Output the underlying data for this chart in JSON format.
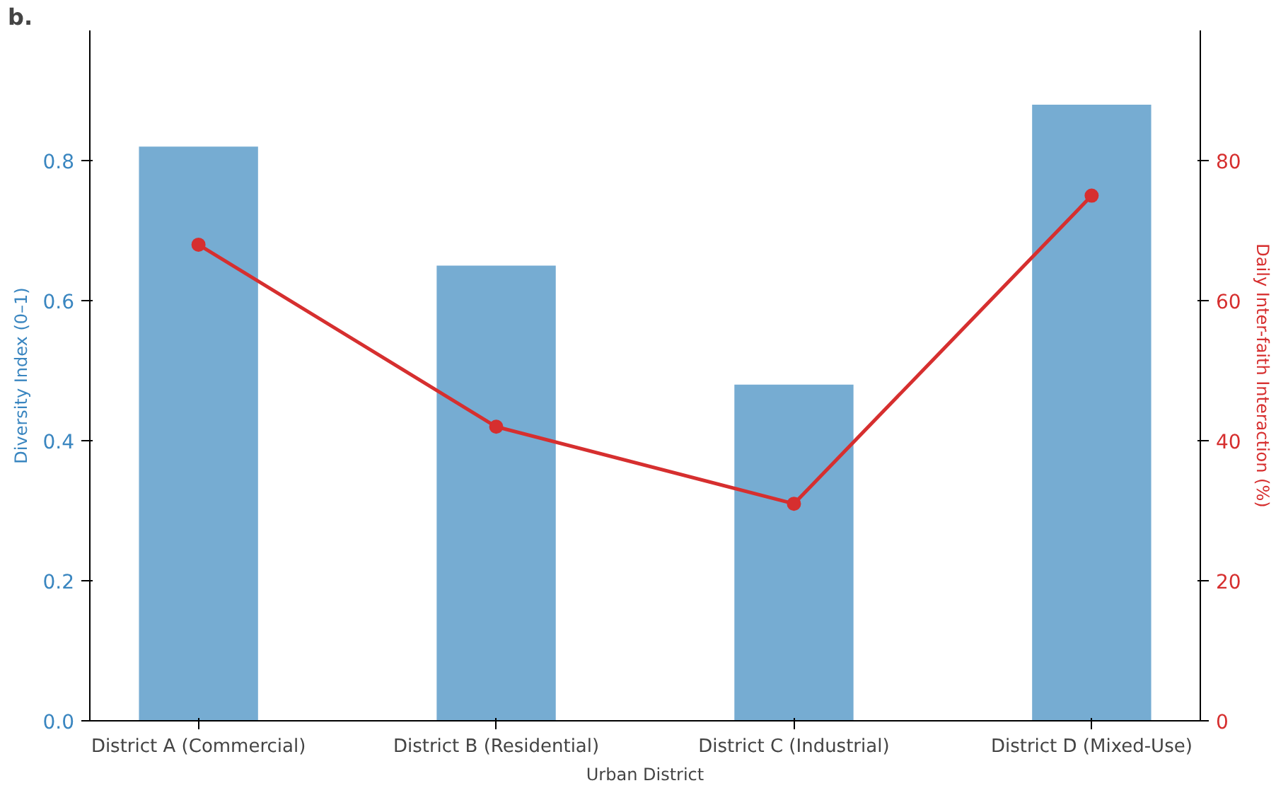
{
  "chart_data": {
    "type": "bar",
    "categories": [
      "District A (Commercial)",
      "District B (Residential)",
      "District C (Industrial)",
      "District D (Mixed-Use)"
    ],
    "xlabel": "Urban District",
    "ylabel": "Diversity Index (0–1)",
    "y2label": "Daily Inter-faith Interaction (%)",
    "ylim": [
      0,
      0.986
    ],
    "yticks": [
      {
        "value": 0,
        "label": "0.0"
      },
      0.2,
      0.4,
      0.6,
      0.8
    ],
    "y2lim": [
      0,
      98.6
    ],
    "y2ticks": [
      0,
      20,
      40,
      60,
      80
    ],
    "series": [
      {
        "color": "#76acd2",
        "values": [
          0.82,
          0.65,
          0.48,
          0.88
        ]
      },
      {
        "type": "line",
        "axis": "y2",
        "color": "#d62f2f",
        "marker": "circle",
        "values": [
          68,
          42,
          31,
          75
        ]
      }
    ],
    "grid": false,
    "annotations": [
      "b."
    ]
  }
}
